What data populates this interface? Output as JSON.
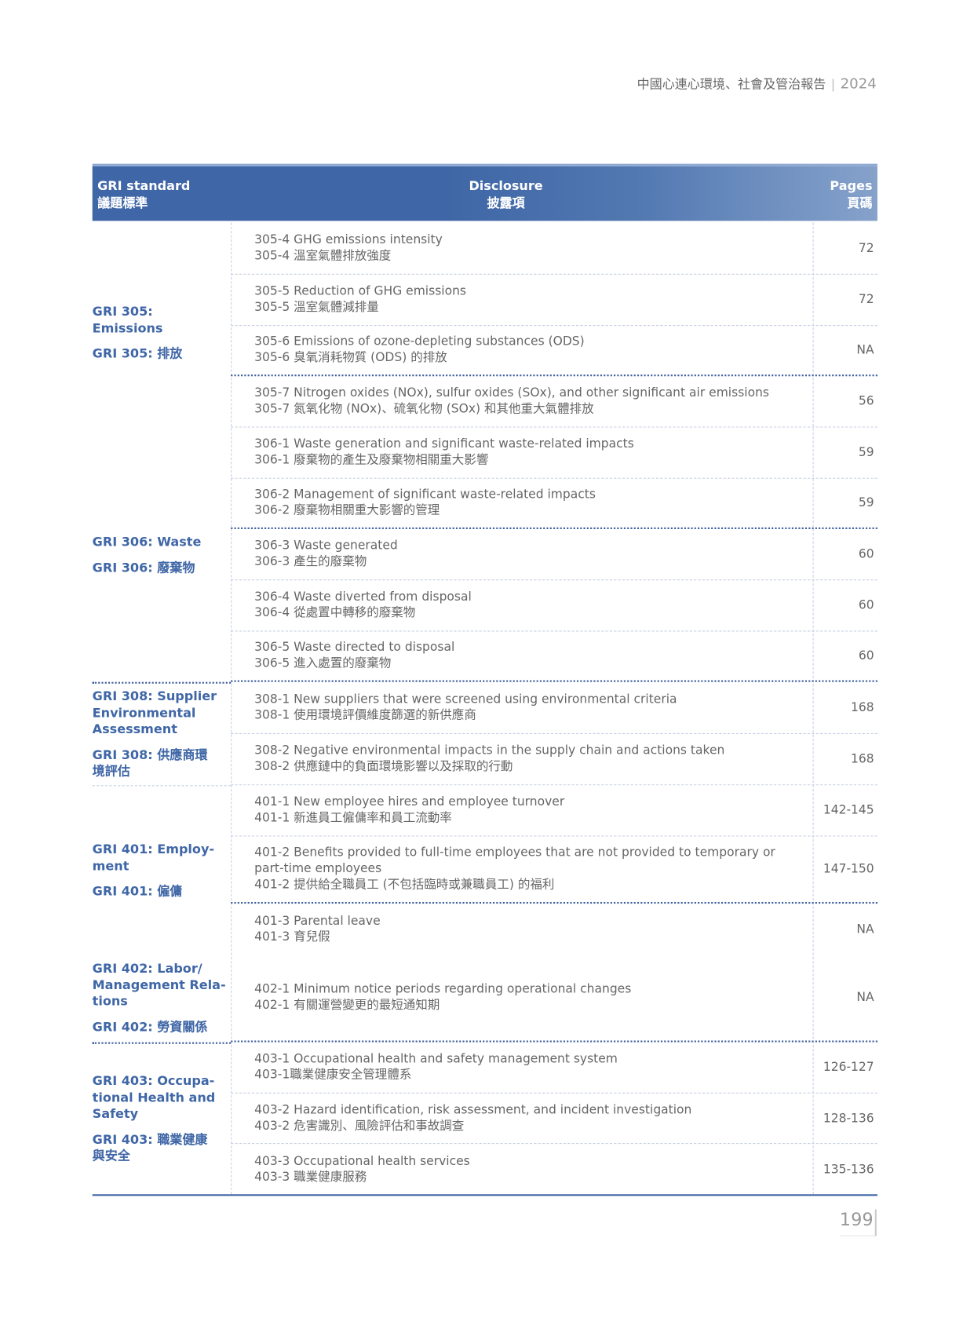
{
  "running_header": {
    "title": "中國心連心環境、社會及管治報告",
    "separator": "|",
    "year": "2024"
  },
  "table": {
    "headers": [
      {
        "en": "GRI standard",
        "zh": "議題標準"
      },
      {
        "en": "Disclosure",
        "zh": "披露項"
      },
      {
        "en": "Pages",
        "zh": "頁碼"
      }
    ],
    "groups": [
      {
        "en": "GRI 305: Emissions",
        "zh": "GRI 305: 排放"
      },
      {
        "en": "GRI 306: Waste",
        "zh": "GRI 306: 廢棄物"
      },
      {
        "en": "GRI 308: Supplier\nEnvironmental\nAssessment",
        "zh": "GRI 308: 供應商環\n境評估"
      },
      {
        "en": "GRI 401: Employ-\nment",
        "zh": "GRI 401: 僱傭"
      },
      {
        "en": "GRI 402: Labor/\nManagement Rela-\ntions",
        "zh": "GRI 402: 勞資關係"
      },
      {
        "en": "GRI 403: Occupa-\ntional Health and\nSafety",
        "zh": "GRI 403: 職業健康\n與安全"
      }
    ],
    "rows": [
      {
        "en": "305-4 GHG emissions intensity",
        "zh": "305-4 溫室氣體排放強度",
        "pages": "72"
      },
      {
        "en": "305-5 Reduction of GHG emissions",
        "zh": "305-5 溫室氣體減排量",
        "pages": "72"
      },
      {
        "en": "305-6 Emissions of ozone-depleting substances (ODS)",
        "zh": "305-6 臭氧消耗物質 (ODS) 的排放",
        "pages": "NA"
      },
      {
        "en": "305-7 Nitrogen oxides (NOx), sulfur oxides (SOx), and other significant air emissions",
        "zh": "305-7 氮氧化物 (NOx)、硫氧化物 (SOx) 和其他重大氣體排放",
        "pages": "56"
      },
      {
        "en": "306-1 Waste generation and significant waste-related impacts",
        "zh": "306-1 廢棄物的產生及廢棄物相關重大影響",
        "pages": "59"
      },
      {
        "en": "306-2 Management of significant waste-related impacts",
        "zh": "306-2 廢棄物相關重大影響的管理",
        "pages": "59"
      },
      {
        "en": "306-3 Waste generated",
        "zh": "306-3 產生的廢棄物",
        "pages": "60"
      },
      {
        "en": "306-4 Waste diverted from disposal",
        "zh": "306-4 從處置中轉移的廢棄物",
        "pages": "60"
      },
      {
        "en": "306-5 Waste directed to disposal",
        "zh": "306-5 進入處置的廢棄物",
        "pages": "60"
      },
      {
        "en": "308-1 New suppliers that were screened using environmental criteria",
        "zh": "308-1 使用環境評價維度篩選的新供應商",
        "pages": "168"
      },
      {
        "en": "308-2 Negative environmental impacts in the supply chain and actions taken",
        "zh": "308-2 供應鏈中的負面環境影響以及採取的行動",
        "pages": "168"
      },
      {
        "en": "401-1 New employee hires and employee turnover",
        "zh": "401-1 新進員工僱傭率和員工流動率",
        "pages": "142-145"
      },
      {
        "en": "401-2 Benefits provided to full-time employees that are not provided to temporary or\npart-time employees",
        "zh": "401-2 提供給全職員工 (不包括臨時或兼職員工) 的福利",
        "pages": "147-150"
      },
      {
        "en": "401-3 Parental leave",
        "zh": "401-3 育兒假",
        "pages": "NA"
      },
      {
        "en": "402-1 Minimum notice periods regarding operational changes",
        "zh": "402-1 有關運營變更的最短通知期",
        "pages": "NA"
      },
      {
        "en": "403-1 Occupational health and safety management system",
        "zh": "403-1職業健康安全管理體系",
        "pages": "126-127"
      },
      {
        "en": "403-2 Hazard identification, risk assessment, and incident investigation",
        "zh": "403-2 危害識別、風險評估和事故調查",
        "pages": "128-136"
      },
      {
        "en": "403-3 Occupational health services",
        "zh": "403-3 職業健康服務",
        "pages": "135-136"
      }
    ]
  },
  "page_number": "199",
  "colors": {
    "accent": "#3f66a6",
    "text": "#666666"
  }
}
